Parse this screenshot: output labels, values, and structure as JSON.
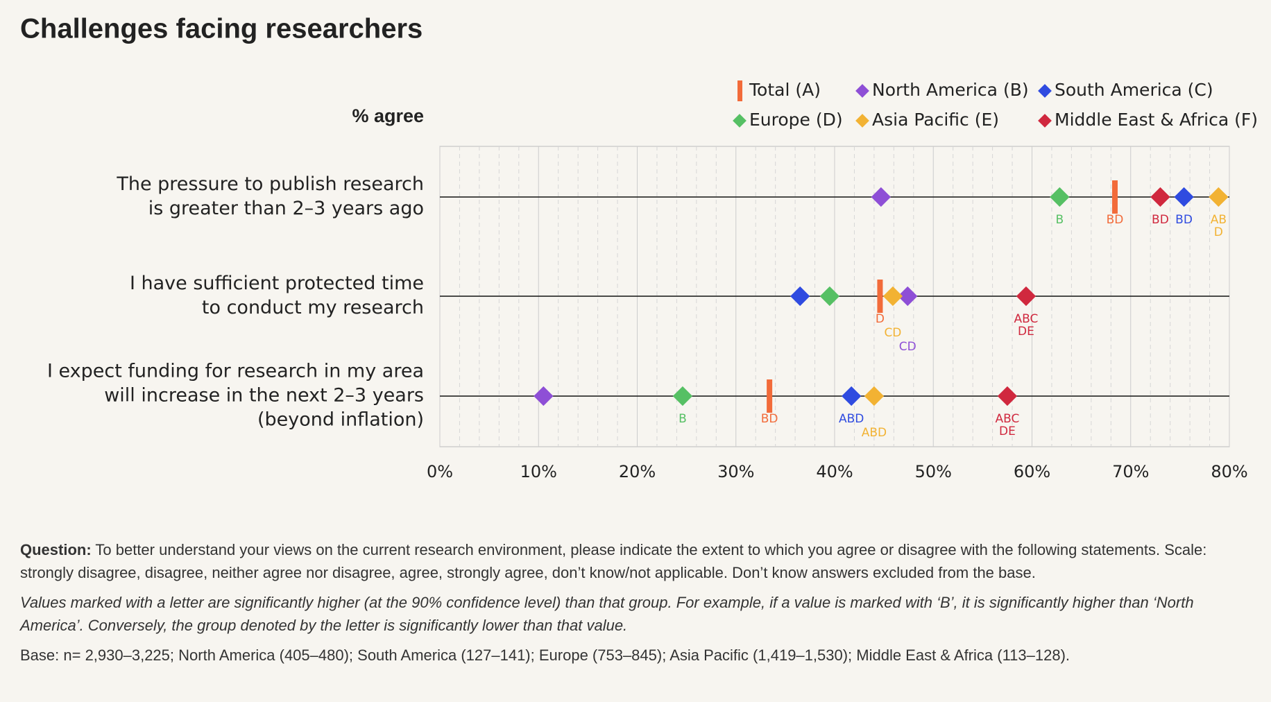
{
  "chart_data": {
    "type": "dot",
    "title": "Challenges facing researchers",
    "axis_label": "% agree",
    "categories": [
      [
        "The pressure to publish research",
        "is greater than 2–3 years ago"
      ],
      [
        "I have sufficient protected time",
        "to conduct my research"
      ],
      [
        "I expect funding for research in my area",
        "will increase in the next 2–3 years",
        "(beyond inflation)"
      ]
    ],
    "series": [
      {
        "name": "Total (A)",
        "color": "#f26b3a",
        "marker": "bar",
        "values": [
          68.4,
          44.6,
          33.4
        ],
        "significance": [
          [
            "BD"
          ],
          [
            "D"
          ],
          [
            "BD"
          ]
        ]
      },
      {
        "name": "North America (B)",
        "color": "#8e4fd6",
        "marker": "diamond",
        "values": [
          44.7,
          47.4,
          10.5
        ],
        "significance": [
          null,
          [
            "CD"
          ],
          null
        ]
      },
      {
        "name": "South America (C)",
        "color": "#2f4be0",
        "marker": "diamond",
        "values": [
          75.4,
          36.5,
          41.7
        ],
        "significance": [
          [
            "BD"
          ],
          null,
          [
            "ABD"
          ]
        ]
      },
      {
        "name": "Europe (D)",
        "color": "#56c064",
        "marker": "diamond",
        "values": [
          62.8,
          39.5,
          24.6
        ],
        "significance": [
          [
            "B"
          ],
          null,
          [
            "B"
          ]
        ]
      },
      {
        "name": "Asia Pacific (E)",
        "color": "#f2b233",
        "marker": "diamond",
        "values": [
          78.9,
          45.9,
          44.0
        ],
        "significance": [
          [
            "AB",
            "D"
          ],
          [
            "CD"
          ],
          [
            "ABD"
          ]
        ]
      },
      {
        "name": "Middle East & Africa (F)",
        "color": "#d0283e",
        "marker": "diamond",
        "values": [
          73.0,
          59.4,
          57.5
        ],
        "significance": [
          [
            "BD"
          ],
          [
            "ABC",
            "DE"
          ],
          [
            "ABC",
            "DE"
          ]
        ]
      }
    ],
    "xlim": [
      0,
      80
    ],
    "xticks": [
      {
        "value": 0,
        "label": "0%"
      },
      {
        "value": 10,
        "label": "10%"
      },
      {
        "value": 20,
        "label": "20%"
      },
      {
        "value": 30,
        "label": "30%"
      },
      {
        "value": 40,
        "label": "40%"
      },
      {
        "value": 50,
        "label": "50%"
      },
      {
        "value": 60,
        "label": "60%"
      },
      {
        "value": 70,
        "label": "70%"
      },
      {
        "value": 80,
        "label": "80%"
      }
    ],
    "grid": true,
    "minor_grid_divisions": 5
  },
  "notes": {
    "question_label": "Question:",
    "question": "To better understand your views on the current research environment, please indicate the extent to which you agree or disagree with the following statements. Scale: strongly disagree, disagree, neither agree nor disagree, agree, strongly agree, don’t know/not applicable. Don’t know answers excluded from the base.",
    "significance_note": "Values marked with a letter are significantly higher (at the 90% confidence level) than that group. For example, if a value is marked with ‘B’, it is significantly higher than ‘North America’. Conversely, the group denoted by the letter is significantly lower than that value.",
    "base": "Base: n= 2,930–3,225; North America (405–480); South America (127–141); Europe (753–845); Asia Pacific (1,419–1,530); Middle East & Africa (113–128)."
  }
}
